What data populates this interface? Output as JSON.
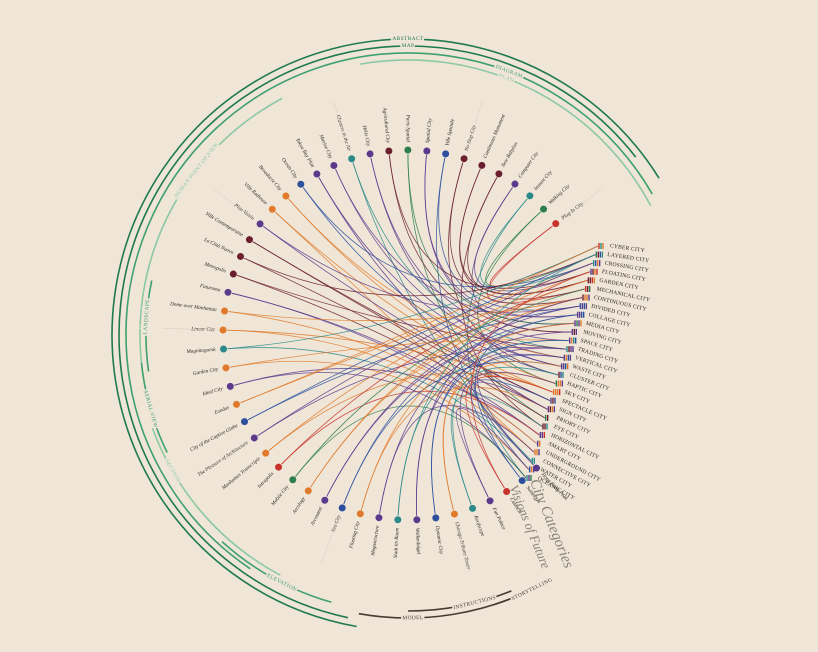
{
  "title": "Visions of Future",
  "subtitle": "City Categories",
  "representation_types": [
    "ABSTRACT",
    "MAP",
    "DIAGRAM",
    "PLAN",
    "HUMAN POINT OF VIEW",
    "LANDSCAPE",
    "AERIAL VIEW",
    "SECTION",
    "ELEVATION",
    "MODEL",
    "INSTRUCTIONS",
    "STORYTELLING"
  ],
  "categories": [
    "CYBER CITY",
    "LAYERED CITY",
    "CROSSING CITY",
    "FLOATING CITY",
    "GARDEN CITY",
    "MECHANICAL CITY",
    "CONTINUOUS CITY",
    "DIVIDED CITY",
    "COLLAGE CITY",
    "MEDIA CITY",
    "MOVING CITY",
    "SPACE CITY",
    "TRADING CITY",
    "VERTICAL CITY",
    "WASTE CITY",
    "CLUSTER CITY",
    "HAPTIC CITY",
    "SKY CITY",
    "SPECTACLE CITY",
    "SIGN CITY",
    "PRIORY CITY",
    "EYE CITY",
    "HORIZONTAL CITY",
    "SMART CITY",
    "UNDERGROUND CITY",
    "CONNECTIVE CITY",
    "WATER CITY",
    "OCEANIC CITY"
  ],
  "works": [
    {
      "label": "Plug-In City",
      "color": "#c8322b",
      "links": [
        0,
        5
      ]
    },
    {
      "label": "Walking City",
      "color": "#2e7d4f",
      "links": [
        1,
        16
      ]
    },
    {
      "label": "Instant City",
      "color": "#2a8a8a",
      "links": [
        2,
        27
      ]
    },
    {
      "label": "Computer City",
      "color": "#5b3a8c",
      "links": [
        3,
        10
      ]
    },
    {
      "label": "New Babylon",
      "color": "#6b1f2e",
      "links": [
        4,
        21
      ]
    },
    {
      "label": "Continuous Monument",
      "color": "#6b1f2e",
      "links": [
        5,
        4
      ]
    },
    {
      "label": "No-Stop City",
      "color": "#6b1f2e",
      "links": [
        6,
        15
      ]
    },
    {
      "label": "Ville Spatiale",
      "color": "#2c4f9e",
      "links": [
        7,
        26
      ]
    },
    {
      "label": "Spatial City",
      "color": "#5b3a8c",
      "links": [
        8,
        9
      ]
    },
    {
      "label": "Paris Spatial",
      "color": "#2e7d4f",
      "links": [
        9,
        20
      ]
    },
    {
      "label": "Agricultural City",
      "color": "#6b1f2e",
      "links": [
        10,
        3
      ]
    },
    {
      "label": "Helix City",
      "color": "#5b3a8c",
      "links": [
        11,
        14
      ]
    },
    {
      "label": "Clusters in the Air",
      "color": "#2a8a8a",
      "links": [
        12,
        25
      ]
    },
    {
      "label": "Marine City",
      "color": "#5b3a8c",
      "links": [
        13,
        8
      ]
    },
    {
      "label": "Tokyo Bay Plan",
      "color": "#5b3a8c",
      "links": [
        14,
        19
      ]
    },
    {
      "label": "Ocean City",
      "color": "#2c4f9e",
      "links": [
        15,
        2
      ]
    },
    {
      "label": "Broadacre City",
      "color": "#e07a2a",
      "links": [
        16,
        13
      ]
    },
    {
      "label": "Ville Radieuse",
      "color": "#e07a2a",
      "links": [
        17,
        24
      ]
    },
    {
      "label": "Plan Voisin",
      "color": "#5b3a8c",
      "links": [
        18,
        7
      ]
    },
    {
      "label": "Ville Contemporaine",
      "color": "#6b1f2e",
      "links": [
        19,
        18
      ]
    },
    {
      "label": "La Città Nuova",
      "color": "#6b1f2e",
      "links": [
        20,
        1
      ]
    },
    {
      "label": "Metropolis",
      "color": "#6b1f2e",
      "links": [
        21,
        12
      ]
    },
    {
      "label": "Futurama",
      "color": "#5b3a8c",
      "links": [
        22,
        23
      ]
    },
    {
      "label": "Dome over Manhattan",
      "color": "#e07a2a",
      "links": [
        23,
        6
      ]
    },
    {
      "label": "Linear City",
      "color": "#e07a2a",
      "links": [
        24,
        17
      ]
    },
    {
      "label": "Magnitogorsk",
      "color": "#2a8a8a",
      "links": [
        25,
        0
      ]
    },
    {
      "label": "Garden City",
      "color": "#e07a2a",
      "links": [
        26,
        11
      ]
    },
    {
      "label": "Ideal City",
      "color": "#5b3a8c",
      "links": [
        27,
        22
      ]
    },
    {
      "label": "Exodus",
      "color": "#e07a2a",
      "links": [
        0,
        2
      ]
    },
    {
      "label": "City of the Captive Globe",
      "color": "#2c4f9e",
      "links": [
        1,
        7
      ]
    },
    {
      "label": "The Pleasure of Architecture",
      "color": "#5b3a8c",
      "links": [
        2,
        12
      ]
    },
    {
      "label": "Manhattan Transcripts",
      "color": "#e07a2a",
      "links": [
        3,
        17
      ]
    },
    {
      "label": "Intrapolis",
      "color": "#c8322b",
      "links": [
        4,
        22
      ]
    },
    {
      "label": "Mobile City",
      "color": "#2e7d4f",
      "links": [
        5,
        27
      ]
    },
    {
      "label": "Arcology",
      "color": "#e07a2a",
      "links": [
        6,
        4
      ]
    },
    {
      "label": "Arcosanti",
      "color": "#5b3a8c",
      "links": [
        7,
        9
      ]
    },
    {
      "label": "Sea City",
      "color": "#2c4f9e",
      "links": [
        8,
        14
      ]
    },
    {
      "label": "Floating City",
      "color": "#e07a2a",
      "links": [
        9,
        19
      ]
    },
    {
      "label": "Megastructure",
      "color": "#5b3a8c",
      "links": [
        10,
        24
      ]
    },
    {
      "label": "Stadt im Raum",
      "color": "#2a8a8a",
      "links": [
        11,
        1
      ]
    },
    {
      "label": "Wolkenbügel",
      "color": "#5b3a8c",
      "links": [
        12,
        6
      ]
    },
    {
      "label": "Dynamic City",
      "color": "#2c4f9e",
      "links": [
        13,
        11
      ]
    },
    {
      "label": "Chicago Tribune Tower",
      "color": "#e07a2a",
      "links": [
        14,
        16
      ]
    },
    {
      "label": "Roofscape",
      "color": "#2a8a8a",
      "links": [
        15,
        21
      ]
    },
    {
      "label": "Fun Palace",
      "color": "#5b3a8c",
      "links": [
        16,
        26
      ]
    },
    {
      "label": "Cushicle",
      "color": "#c8322b",
      "links": [
        17,
        3
      ]
    },
    {
      "label": "Suitaloon",
      "color": "#2c4f9e",
      "links": [
        18,
        8
      ]
    },
    {
      "label": "Hong Kong Peak",
      "color": "#5b3a8c",
      "links": [
        19,
        13
      ]
    }
  ]
}
